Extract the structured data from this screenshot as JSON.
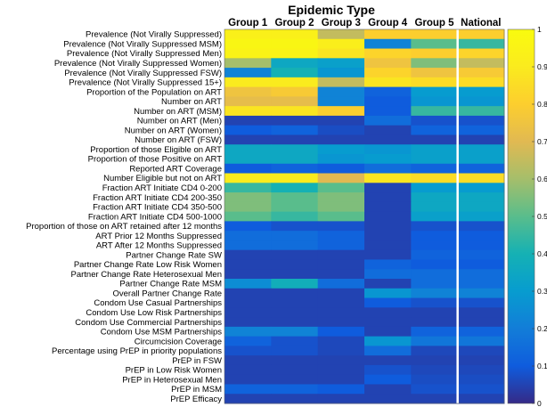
{
  "chart_data": {
    "type": "heatmap",
    "title": "Epidemic Type",
    "columns": [
      "Group 1",
      "Group 2",
      "Group 3",
      "Group 4",
      "Group 5",
      "National"
    ],
    "rows": [
      "Prevalence (Not Virally Suppressed)",
      "Prevalence (Not Virally Suppressed MSM)",
      "Prevalence (Not Virally Suppressed Men)",
      "Prevalence (Not Virally Suppressed Women)",
      "Prevalence (Not Virally Suppressed FSW)",
      "Prevalence (Not Virally Suppressed 15+)",
      "Proportion of the Population on ART",
      "Number on ART",
      "Number on ART (MSM)",
      "Number on ART (Men)",
      "Number on ART (Women)",
      "Number on ART (FSW)",
      "Proportion of those Eligible on ART",
      "Proportion of those Positive on ART",
      "Reported ART Coverage",
      "Number Eligible but not on ART",
      "Fraction ART Initiate CD4 0-200",
      "Fraction ART Initiate CD4 200-350",
      "Fraction ART Initiate CD4 350-500",
      "Fraction ART Initiate CD4 500-1000",
      "Proportion of those on ART retained after 12 months",
      "ART Prior 12 Months Suppressed",
      "ART After 12 Months Suppressed",
      "Partner Change Rate SW",
      "Partner Change Rate Low Risk Women",
      "Partner Change Rate Heterosexual Men",
      "Partner Change Rate MSM",
      "Overall Partner Change Rate",
      "Condom Use Casual Partnerships",
      "Condom Use Low Risk Partnerships",
      "Condom Use Commercial Partnerships",
      "Condom Use MSM Partnerships",
      "Circumcision Coverage",
      "Percentage using PrEP in priority populations",
      "PrEP in FSW",
      "PrEP in Low Risk Women",
      "PrEP in Heterosexual Men",
      "PrEP in MSM",
      "PrEP Efficacy"
    ],
    "values": [
      [
        0.93,
        0.93,
        0.65,
        0.8,
        0.8,
        0.8
      ],
      [
        0.97,
        0.97,
        0.92,
        0.22,
        0.5,
        0.45
      ],
      [
        0.95,
        0.95,
        0.88,
        0.82,
        0.8,
        0.82
      ],
      [
        0.6,
        0.35,
        0.32,
        0.75,
        0.55,
        0.65
      ],
      [
        0.22,
        0.4,
        0.28,
        0.82,
        0.75,
        0.78
      ],
      [
        0.9,
        0.9,
        0.65,
        0.88,
        0.85,
        0.85
      ],
      [
        0.75,
        0.78,
        0.22,
        0.12,
        0.3,
        0.3
      ],
      [
        0.72,
        0.72,
        0.22,
        0.1,
        0.28,
        0.28
      ],
      [
        0.88,
        0.88,
        0.8,
        0.1,
        0.45,
        0.45
      ],
      [
        0.05,
        0.05,
        0.05,
        0.15,
        0.08,
        0.08
      ],
      [
        0.1,
        0.12,
        0.07,
        0.05,
        0.12,
        0.12
      ],
      [
        0.05,
        0.05,
        0.05,
        0.05,
        0.05,
        0.05
      ],
      [
        0.35,
        0.35,
        0.3,
        0.28,
        0.32,
        0.32
      ],
      [
        0.35,
        0.35,
        0.28,
        0.3,
        0.32,
        0.32
      ],
      [
        0.1,
        0.12,
        0.1,
        0.15,
        0.12,
        0.12
      ],
      [
        0.9,
        0.9,
        0.7,
        0.88,
        0.85,
        0.85
      ],
      [
        0.45,
        0.4,
        0.5,
        0.05,
        0.3,
        0.3
      ],
      [
        0.55,
        0.5,
        0.55,
        0.05,
        0.35,
        0.35
      ],
      [
        0.55,
        0.5,
        0.55,
        0.05,
        0.35,
        0.35
      ],
      [
        0.5,
        0.45,
        0.5,
        0.05,
        0.32,
        0.32
      ],
      [
        0.1,
        0.08,
        0.08,
        0.05,
        0.08,
        0.08
      ],
      [
        0.15,
        0.15,
        0.12,
        0.05,
        0.1,
        0.1
      ],
      [
        0.15,
        0.15,
        0.12,
        0.05,
        0.1,
        0.1
      ],
      [
        0.05,
        0.05,
        0.05,
        0.05,
        0.12,
        0.12
      ],
      [
        0.05,
        0.05,
        0.05,
        0.12,
        0.1,
        0.1
      ],
      [
        0.05,
        0.05,
        0.05,
        0.15,
        0.15,
        0.15
      ],
      [
        0.25,
        0.38,
        0.15,
        0.05,
        0.15,
        0.15
      ],
      [
        0.05,
        0.05,
        0.05,
        0.28,
        0.22,
        0.22
      ],
      [
        0.05,
        0.05,
        0.05,
        0.1,
        0.08,
        0.08
      ],
      [
        0.05,
        0.05,
        0.05,
        0.05,
        0.05,
        0.05
      ],
      [
        0.05,
        0.05,
        0.05,
        0.05,
        0.05,
        0.05
      ],
      [
        0.22,
        0.22,
        0.1,
        0.05,
        0.12,
        0.12
      ],
      [
        0.12,
        0.08,
        0.06,
        0.28,
        0.18,
        0.18
      ],
      [
        0.08,
        0.08,
        0.06,
        0.15,
        0.06,
        0.06
      ],
      [
        0.05,
        0.05,
        0.05,
        0.05,
        0.05,
        0.05
      ],
      [
        0.05,
        0.05,
        0.05,
        0.08,
        0.06,
        0.06
      ],
      [
        0.05,
        0.05,
        0.05,
        0.1,
        0.07,
        0.07
      ],
      [
        0.12,
        0.12,
        0.1,
        0.05,
        0.08,
        0.08
      ],
      [
        0.05,
        0.05,
        0.05,
        0.05,
        0.05,
        0.05
      ]
    ],
    "colorbar": {
      "range": [
        0,
        1
      ],
      "ticks": [
        0,
        0.1,
        0.2,
        0.3,
        0.4,
        0.5,
        0.6,
        0.7,
        0.8,
        0.9,
        1
      ],
      "tick_labels": [
        "0",
        "0.1",
        "0.2",
        "0.3",
        "0.4",
        "0.5",
        "0.6",
        "0.7",
        "0.8",
        "0.9",
        "1"
      ],
      "colormap": "parula"
    },
    "separator_before_column": "National"
  },
  "colors": {
    "background": "#ffffff",
    "separator": "#ffffff",
    "text": "#000000"
  }
}
